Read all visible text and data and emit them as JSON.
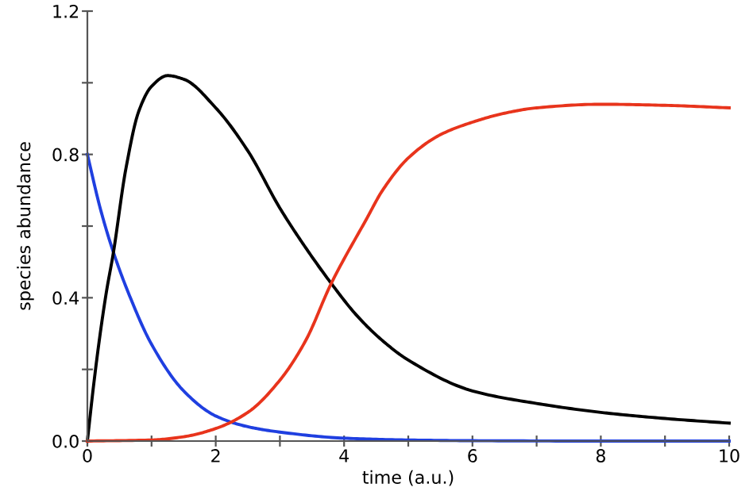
{
  "chart_data": {
    "type": "line",
    "xlabel": "time (a.u.)",
    "ylabel": "species abundance",
    "xlim": [
      0,
      10
    ],
    "ylim": [
      0,
      1.2
    ],
    "xticks": [
      0,
      {
        "value": 1,
        "label": null
      },
      2,
      {
        "value": 3,
        "label": null
      },
      4,
      {
        "value": 5,
        "label": null
      },
      6,
      {
        "value": 7,
        "label": null
      },
      8,
      {
        "value": 9,
        "label": null
      },
      10
    ],
    "yticks": [
      {
        "value": 0,
        "label": "0.0"
      },
      {
        "value": 0.2,
        "label": null
      },
      0.4,
      {
        "value": 0.6,
        "label": null
      },
      0.8,
      {
        "value": 1.0,
        "label": null
      },
      1.2
    ],
    "grid": false,
    "marker": "none",
    "line_style": "solid",
    "series": [
      {
        "color": "#1f3fe0",
        "x": [
          0,
          0.2,
          0.4,
          0.67,
          1,
          1.5,
          2,
          2.5,
          3,
          4,
          5,
          6,
          8,
          10
        ],
        "values": [
          0.8,
          0.65,
          0.53,
          0.4,
          0.27,
          0.14,
          0.07,
          0.04,
          0.025,
          0.008,
          0.003,
          0.001,
          0,
          0
        ]
      },
      {
        "color": "#000000",
        "x": [
          0,
          0.1,
          0.2,
          0.3,
          0.4,
          0.6,
          0.8,
          1,
          1.25,
          1.5,
          2,
          2.5,
          3,
          3.4,
          3.8,
          4.2,
          4.6,
          5,
          6,
          7,
          8,
          9,
          10
        ],
        "values": [
          0,
          0.16,
          0.3,
          0.42,
          0.52,
          0.76,
          0.92,
          0.99,
          1.02,
          1.01,
          0.93,
          0.81,
          0.65,
          0.54,
          0.44,
          0.35,
          0.28,
          0.226,
          0.14,
          0.105,
          0.08,
          0.063,
          0.05
        ]
      },
      {
        "color": "#e8341c",
        "x": [
          0,
          1,
          1.5,
          2,
          2.5,
          3,
          3.4,
          3.8,
          4.35,
          4.6,
          5,
          5.5,
          6,
          6.5,
          7,
          8,
          9,
          10
        ],
        "values": [
          0,
          0.003,
          0.012,
          0.035,
          0.08,
          0.17,
          0.28,
          0.44,
          0.62,
          0.7,
          0.79,
          0.855,
          0.89,
          0.915,
          0.93,
          0.94,
          0.937,
          0.93
        ]
      }
    ]
  }
}
